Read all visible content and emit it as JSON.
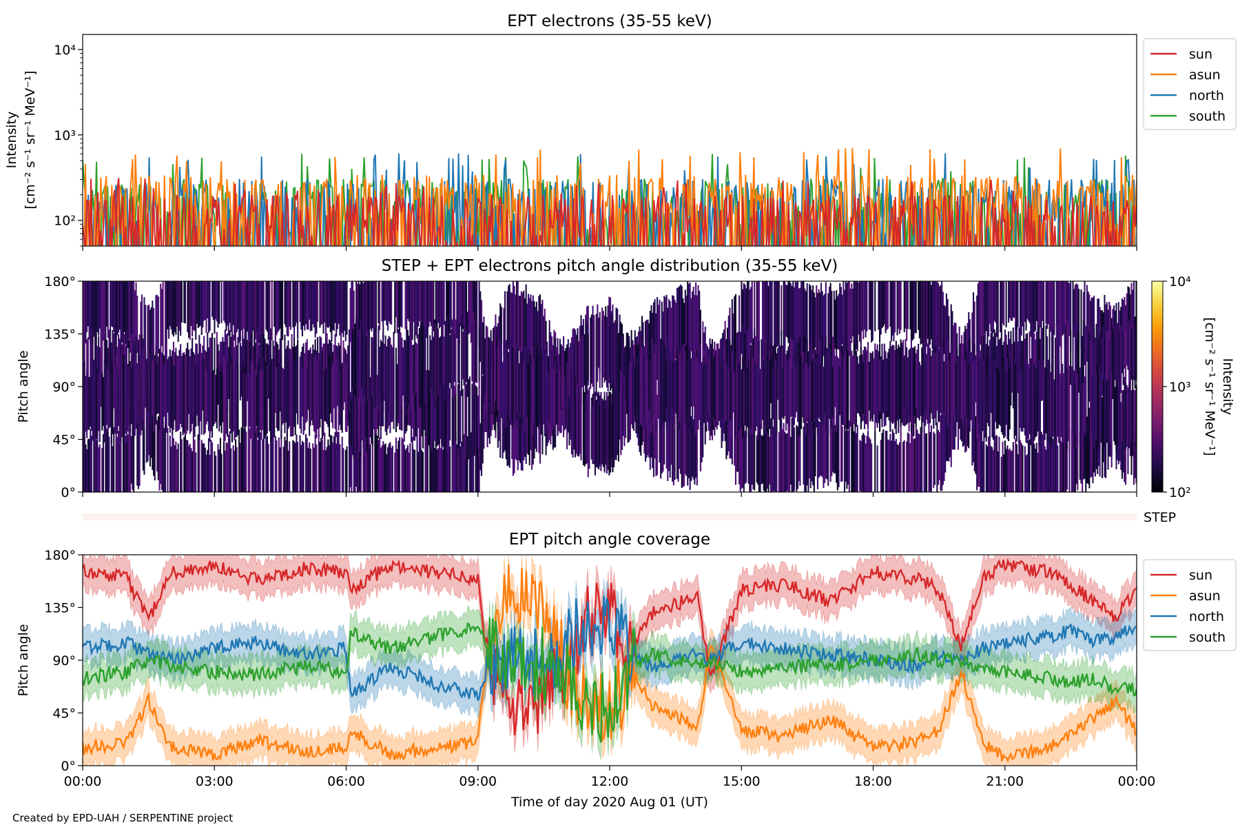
{
  "footer": "Created by EPD-UAH / SERPENTINE project",
  "colors": {
    "sun": "#d62728",
    "asun": "#ff7f0e",
    "north": "#1f77b4",
    "south": "#2ca02c",
    "step_bar": "#fdf1ed"
  },
  "chart_data": [
    {
      "type": "line",
      "title": "EPT electrons (35-55 keV)",
      "ylabel": "Intensity",
      "ylabel_unit": "[cm⁻² s⁻¹ sr⁻¹ MeV⁻¹]",
      "yscale": "log",
      "ylim": [
        50,
        15000
      ],
      "yticks": [
        100,
        1000,
        10000
      ],
      "ytick_labels": [
        "10²",
        "10³",
        "10⁴"
      ],
      "xlim_hours": [
        0,
        24
      ],
      "legend": [
        "sun",
        "asun",
        "north",
        "south"
      ],
      "legend_position": "upper-right-outside",
      "series": [
        {
          "name": "south",
          "baseline": 170,
          "spike_max": 620
        },
        {
          "name": "north",
          "baseline": 170,
          "spike_max": 620
        },
        {
          "name": "asun",
          "baseline": 190,
          "spike_max": 700
        },
        {
          "name": "sun",
          "baseline": 110,
          "spike_max": 320
        }
      ]
    },
    {
      "type": "heatmap",
      "title": "STEP + EPT electrons pitch angle distribution (35-55 keV)",
      "ylabel": "Pitch angle",
      "ylim": [
        0,
        180
      ],
      "yticks": [
        0,
        45,
        90,
        135,
        180
      ],
      "ytick_labels": [
        "0°",
        "45°",
        "90°",
        "135°",
        "180°"
      ],
      "xlim_hours": [
        0,
        24
      ],
      "colorbar": {
        "label": "Intensity",
        "unit": "[cm⁻² s⁻¹ sr⁻¹ MeV⁻¹]",
        "scale": "log",
        "range": [
          100,
          10000
        ],
        "tick_labels": [
          "10²",
          "10³",
          "10⁴"
        ],
        "colormap": "inferno"
      },
      "step_label": "STEP"
    },
    {
      "type": "line",
      "title": "EPT pitch angle coverage",
      "ylabel": "Pitch angle",
      "ylim": [
        0,
        180
      ],
      "yticks": [
        0,
        45,
        90,
        135,
        180
      ],
      "ytick_labels": [
        "0°",
        "45°",
        "90°",
        "135°",
        "180°"
      ],
      "xlabel": "Time of day 2020 Aug 01 (UT)",
      "xlim_hours": [
        0,
        24
      ],
      "xtick_labels": [
        "00:00",
        "03:00",
        "06:00",
        "09:00",
        "12:00",
        "15:00",
        "18:00",
        "21:00",
        "00:00"
      ],
      "legend": [
        "sun",
        "asun",
        "north",
        "south"
      ],
      "legend_position": "upper-right-outside",
      "band_halfwidth_deg": 15,
      "series": [
        {
          "name": "sun",
          "hours": [
            0,
            1,
            1.5,
            2,
            3,
            4,
            5,
            6,
            6.1,
            7,
            8,
            9,
            9.2,
            9.7,
            10.5,
            11,
            11.5,
            12,
            12.5,
            13,
            14,
            14.3,
            15,
            16,
            17,
            18,
            19,
            19.5,
            20,
            20.5,
            21,
            22,
            22.5,
            23,
            23.5,
            24
          ],
          "values": [
            165,
            160,
            125,
            165,
            170,
            158,
            168,
            165,
            150,
            170,
            165,
            160,
            90,
            50,
            60,
            90,
            125,
            130,
            100,
            130,
            145,
            75,
            150,
            155,
            140,
            165,
            160,
            150,
            100,
            160,
            172,
            165,
            155,
            140,
            125,
            150
          ]
        },
        {
          "name": "asun",
          "hours": [
            0,
            1,
            1.5,
            2,
            3,
            4,
            5,
            6,
            6.1,
            7,
            8,
            9,
            9.2,
            9.7,
            10.5,
            11,
            11.5,
            12,
            12.5,
            13,
            14,
            14.3,
            15,
            16,
            17,
            18,
            19,
            19.5,
            20,
            20.5,
            21,
            22,
            22.5,
            23,
            23.5,
            24
          ],
          "values": [
            15,
            20,
            55,
            15,
            10,
            22,
            12,
            15,
            30,
            10,
            15,
            20,
            90,
            150,
            130,
            80,
            55,
            50,
            80,
            50,
            35,
            100,
            30,
            25,
            40,
            15,
            20,
            30,
            80,
            20,
            8,
            15,
            25,
            40,
            55,
            30
          ]
        },
        {
          "name": "north",
          "hours": [
            0,
            1,
            1.5,
            2,
            3,
            4,
            5,
            6,
            6.1,
            7,
            8,
            9,
            9.2,
            9.7,
            10.5,
            11,
            11.5,
            12,
            12.5,
            13,
            14,
            14.3,
            15,
            16,
            17,
            18,
            19,
            19.5,
            20,
            20.5,
            21,
            22,
            22.5,
            23,
            23.5,
            24
          ],
          "values": [
            100,
            105,
            95,
            90,
            100,
            105,
            95,
            100,
            60,
            85,
            70,
            60,
            75,
            95,
            90,
            100,
            115,
            120,
            95,
            85,
            95,
            90,
            105,
            100,
            95,
            90,
            85,
            95,
            90,
            100,
            105,
            110,
            115,
            105,
            110,
            120
          ]
        },
        {
          "name": "south",
          "hours": [
            0,
            1,
            1.5,
            2,
            3,
            4,
            5,
            6,
            6.1,
            7,
            8,
            9,
            9.2,
            9.7,
            10.5,
            11,
            11.5,
            12,
            12.5,
            13,
            14,
            14.3,
            15,
            16,
            17,
            18,
            19,
            19.5,
            20,
            20.5,
            21,
            22,
            22.5,
            23,
            23.5,
            24
          ],
          "values": [
            75,
            80,
            90,
            85,
            80,
            78,
            85,
            80,
            115,
            100,
            110,
            120,
            105,
            90,
            85,
            75,
            50,
            50,
            85,
            95,
            85,
            90,
            80,
            85,
            85,
            90,
            95,
            90,
            90,
            80,
            80,
            75,
            70,
            75,
            65,
            65
          ]
        }
      ]
    }
  ]
}
